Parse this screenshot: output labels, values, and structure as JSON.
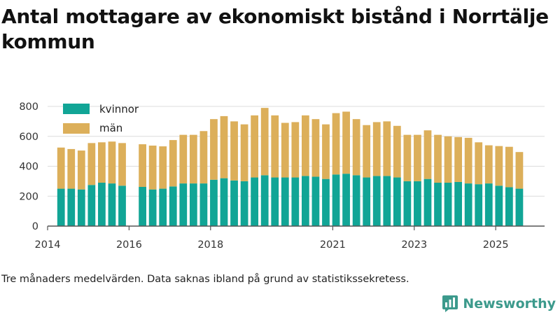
{
  "title": "Antal mottagare av ekonomiskt bistånd i Norrtälje kommun",
  "note": "Tre månaders medelvärden. Data saknas ibland på grund av statistikssekretess.",
  "brand": {
    "name": "Newsworthy",
    "logo_icon": "newsworthy-bar-chart-icon"
  },
  "colors": {
    "kvinnor": "#11a596",
    "man": "#dcaf5a",
    "grid": "#dcdcdc",
    "axis": "#555555"
  },
  "chart_data": {
    "type": "bar",
    "stacked": true,
    "x_time_range": [
      2014.0,
      2026.2
    ],
    "ylim": [
      0,
      800
    ],
    "yticks": [
      0,
      200,
      400,
      600,
      800
    ],
    "xticks": [
      {
        "label": "2014",
        "t": 2014.0
      },
      {
        "label": "2016",
        "t": 2016.0
      },
      {
        "label": "2018",
        "t": 2018.0
      },
      {
        "label": "2021",
        "t": 2021.0
      },
      {
        "label": "2023",
        "t": 2023.0
      },
      {
        "label": "2025",
        "t": 2025.0
      }
    ],
    "legend": [
      "kvinnor",
      "män"
    ],
    "categories": [
      "2014-05",
      "2014-08",
      "2014-11",
      "2015-02",
      "2015-05",
      "2015-08",
      "2015-11",
      "2016-05",
      "2016-08",
      "2016-11",
      "2017-02",
      "2017-05",
      "2017-08",
      "2017-11",
      "2018-02",
      "2018-05",
      "2018-08",
      "2018-11",
      "2019-02",
      "2019-05",
      "2019-08",
      "2019-11",
      "2020-02",
      "2020-05",
      "2020-08",
      "2020-11",
      "2021-02",
      "2021-05",
      "2021-08",
      "2021-11",
      "2022-02",
      "2022-05",
      "2022-08",
      "2022-11",
      "2023-02",
      "2023-05",
      "2023-08",
      "2023-11",
      "2024-02",
      "2024-05",
      "2024-08",
      "2024-11",
      "2025-02",
      "2025-05",
      "2025-08"
    ],
    "t": [
      2014.33,
      2014.58,
      2014.83,
      2015.08,
      2015.33,
      2015.58,
      2015.83,
      2016.33,
      2016.58,
      2016.83,
      2017.08,
      2017.33,
      2017.58,
      2017.83,
      2018.08,
      2018.33,
      2018.58,
      2018.83,
      2019.08,
      2019.33,
      2019.58,
      2019.83,
      2020.08,
      2020.33,
      2020.58,
      2020.83,
      2021.08,
      2021.33,
      2021.58,
      2021.83,
      2022.08,
      2022.33,
      2022.58,
      2022.83,
      2023.08,
      2023.33,
      2023.58,
      2023.83,
      2024.08,
      2024.33,
      2024.58,
      2024.83,
      2025.08,
      2025.33,
      2025.58
    ],
    "series": [
      {
        "name": "kvinnor",
        "values": [
          250,
          250,
          245,
          275,
          290,
          285,
          270,
          262,
          245,
          250,
          265,
          285,
          285,
          285,
          310,
          320,
          305,
          300,
          325,
          340,
          325,
          325,
          325,
          335,
          330,
          315,
          345,
          350,
          340,
          325,
          335,
          335,
          325,
          300,
          300,
          315,
          290,
          290,
          295,
          285,
          280,
          285,
          270,
          260,
          250
        ]
      },
      {
        "name": "män",
        "values": [
          275,
          265,
          260,
          280,
          270,
          280,
          285,
          285,
          293,
          283,
          310,
          325,
          325,
          350,
          405,
          415,
          395,
          380,
          415,
          450,
          415,
          365,
          370,
          405,
          385,
          365,
          410,
          415,
          375,
          350,
          360,
          365,
          345,
          310,
          310,
          325,
          320,
          310,
          300,
          305,
          280,
          255,
          265,
          270,
          245
        ]
      }
    ]
  }
}
